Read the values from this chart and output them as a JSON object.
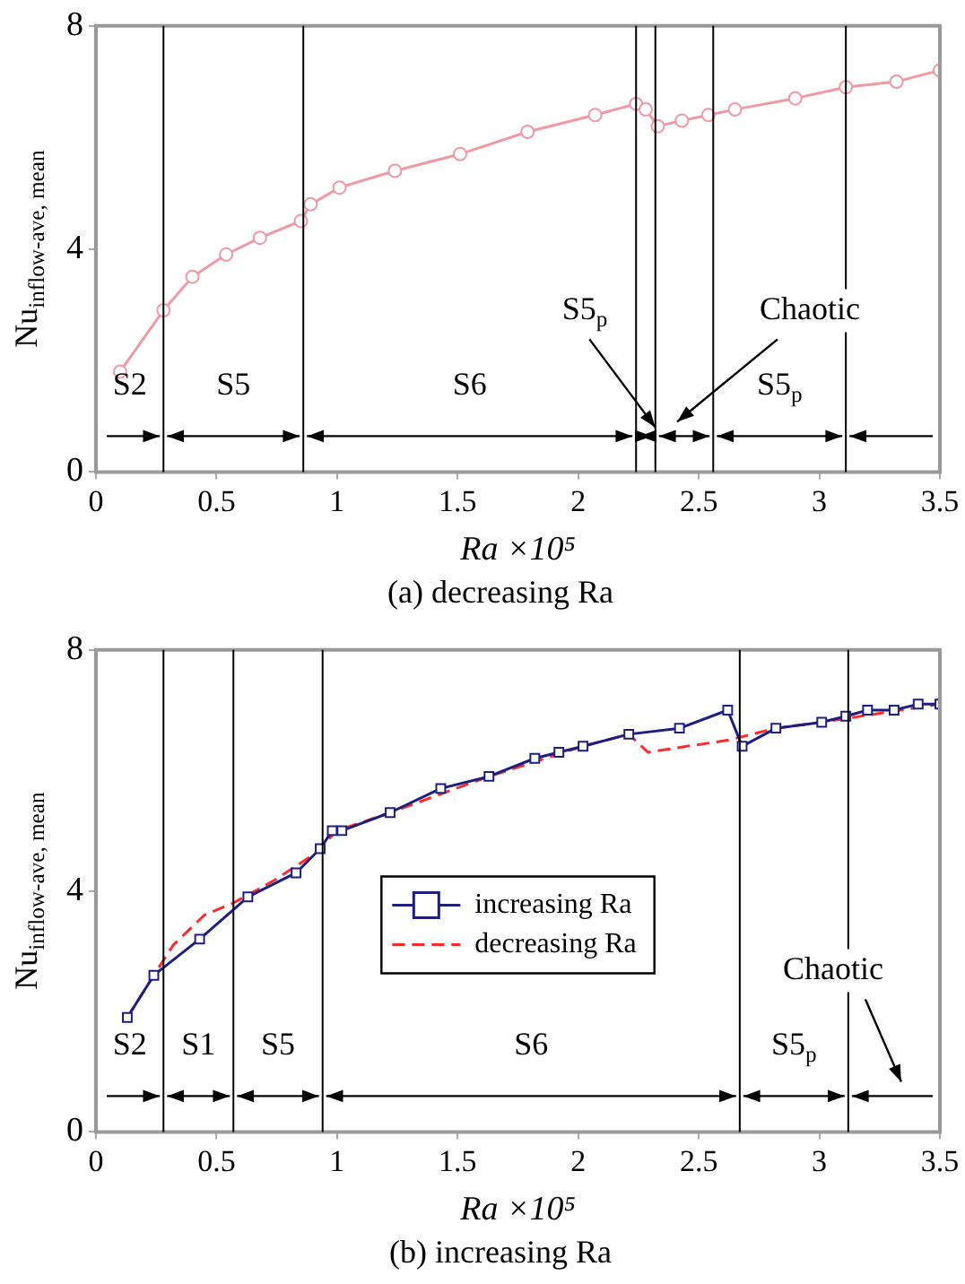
{
  "chart_data": [
    {
      "type": "line",
      "title": "(a) decreasing Ra",
      "xlabel": "Ra ×10⁵",
      "ylabel": "Nu$_{inflow-ave, mean}$",
      "series": [
        {
          "color": "#f09aa6",
          "marker": "circle",
          "x": [
            0.1,
            0.28,
            0.4,
            0.54,
            0.68,
            0.85,
            0.89,
            1.01,
            1.24,
            1.51,
            1.79,
            2.07,
            2.24,
            2.28,
            2.33,
            2.43,
            2.54,
            2.65,
            2.9,
            3.11,
            3.32,
            3.5
          ],
          "values": [
            1.8,
            2.9,
            3.5,
            3.9,
            4.2,
            4.5,
            4.8,
            5.1,
            5.4,
            5.7,
            6.1,
            6.4,
            6.6,
            6.5,
            6.2,
            6.3,
            6.4,
            6.5,
            6.7,
            6.9,
            7.0,
            7.2
          ]
        }
      ],
      "xlim": [
        0,
        3.5
      ],
      "ylim": [
        0,
        8
      ],
      "xticks": [
        0,
        0.5,
        1,
        1.5,
        2,
        2.5,
        3,
        3.5
      ],
      "yticks": [
        0,
        4,
        8
      ],
      "grid": false,
      "legend": false,
      "ref_lines": [
        {
          "axis": "x",
          "value": 0.28
        },
        {
          "axis": "x",
          "value": 0.86
        },
        {
          "axis": "x",
          "value": 2.24
        },
        {
          "axis": "x",
          "value": 2.32
        },
        {
          "axis": "x",
          "value": 2.56
        },
        {
          "axis": "x",
          "value": 3.11
        }
      ],
      "annotations": [
        "S2",
        "S5",
        "S6",
        {
          "text": "S5$_{p}$",
          "x": 2.32,
          "y": 0.8
        },
        "Chaotic",
        "S5$_{p}$"
      ]
    },
    {
      "type": "line",
      "xlabel": "Ra ×10⁵",
      "ylabel": "Nu$_{inflow-ave, mean}$",
      "title": "(b) increasing Ra",
      "series": [
        {
          "name": "increasing Ra",
          "color": "#1f1f80",
          "marker": "square",
          "x": [
            0.13,
            0.24,
            0.43,
            0.63,
            0.83,
            0.93,
            0.98,
            1.02,
            1.22,
            1.43,
            1.63,
            1.82,
            1.92,
            2.02,
            2.21,
            2.42,
            2.62,
            2.68,
            2.82,
            3.01,
            3.11,
            3.2,
            3.31,
            3.41,
            3.5
          ],
          "values": [
            1.9,
            2.6,
            3.2,
            3.9,
            4.3,
            4.7,
            5.0,
            5.0,
            5.3,
            5.7,
            5.9,
            6.2,
            6.3,
            6.4,
            6.6,
            6.7,
            7.0,
            6.4,
            6.7,
            6.8,
            6.9,
            7.0,
            7.0,
            7.1,
            7.1
          ]
        },
        {
          "name": "decreasing Ra",
          "color": "#ff2a2a",
          "marker": "none",
          "line_style": "dashed",
          "x": [
            0.13,
            0.24,
            0.32,
            0.45,
            0.57,
            0.75,
            0.9,
            1.0,
            1.22,
            1.63,
            2.02,
            2.21,
            2.29,
            2.45,
            2.62,
            2.82,
            3.01,
            3.5
          ],
          "values": [
            1.9,
            2.6,
            3.1,
            3.6,
            3.8,
            4.2,
            4.6,
            5.0,
            5.3,
            5.9,
            6.4,
            6.6,
            6.3,
            6.4,
            6.5,
            6.7,
            6.8,
            7.1
          ]
        }
      ],
      "xlim": [
        0,
        3.5
      ],
      "ylim": [
        0,
        8
      ],
      "xticks": [
        0,
        0.5,
        1,
        1.5,
        2,
        2.5,
        3,
        3.5
      ],
      "yticks": [
        0,
        4,
        8
      ],
      "grid": false,
      "legend": "center",
      "ref_lines": [
        {
          "axis": "x",
          "value": 0.28
        },
        {
          "axis": "x",
          "value": 0.57
        },
        {
          "axis": "x",
          "value": 0.94
        },
        {
          "axis": "x",
          "value": 2.67
        },
        {
          "axis": "x",
          "value": 3.12
        }
      ],
      "annotations": [
        "S2",
        "S1",
        "S5",
        "S6",
        "S5$_{p}$",
        "Chaotic"
      ]
    }
  ]
}
